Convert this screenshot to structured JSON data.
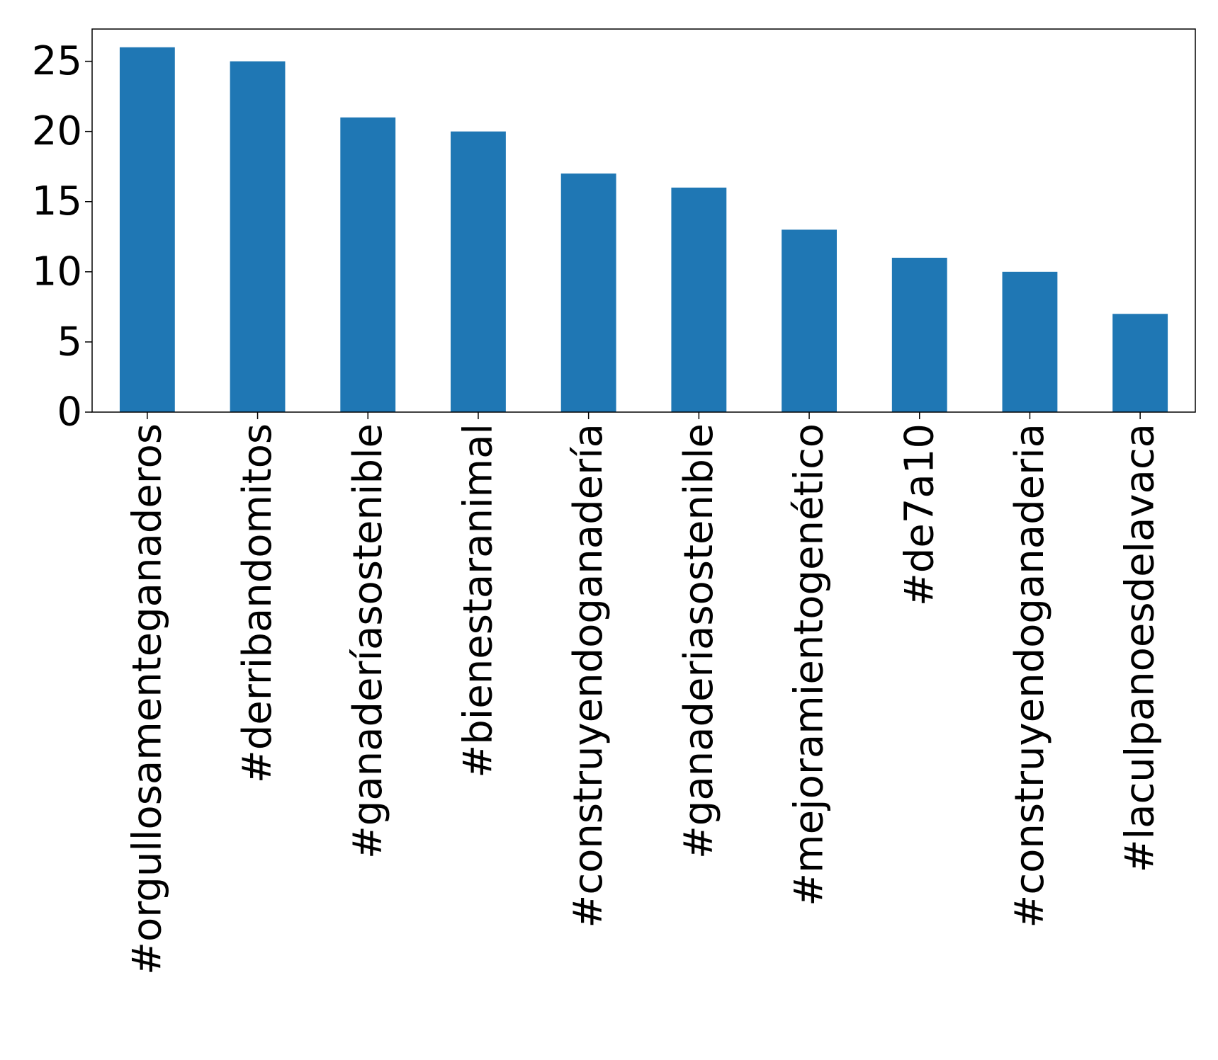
{
  "chart_data": {
    "type": "bar",
    "title": "",
    "xlabel": "",
    "ylabel": "",
    "categories": [
      "#orgullosamenteganaderos",
      "#derribandomitos",
      "#ganaderíasostenible",
      "#bienestaranimal",
      "#construyendoganadería",
      "#ganaderiasostenible",
      "#mejoramientogenético",
      "#de7a10",
      "#construyendoganaderia",
      "#laculpanoesdelavaca"
    ],
    "values": [
      26,
      25,
      21,
      20,
      17,
      16,
      13,
      11,
      10,
      7
    ],
    "ylim": [
      0,
      27.3
    ],
    "yticks": [
      0,
      5,
      10,
      15,
      20,
      25
    ],
    "grid": false,
    "colors": {
      "bar": "#1f77b4",
      "axes": "#000000"
    }
  }
}
